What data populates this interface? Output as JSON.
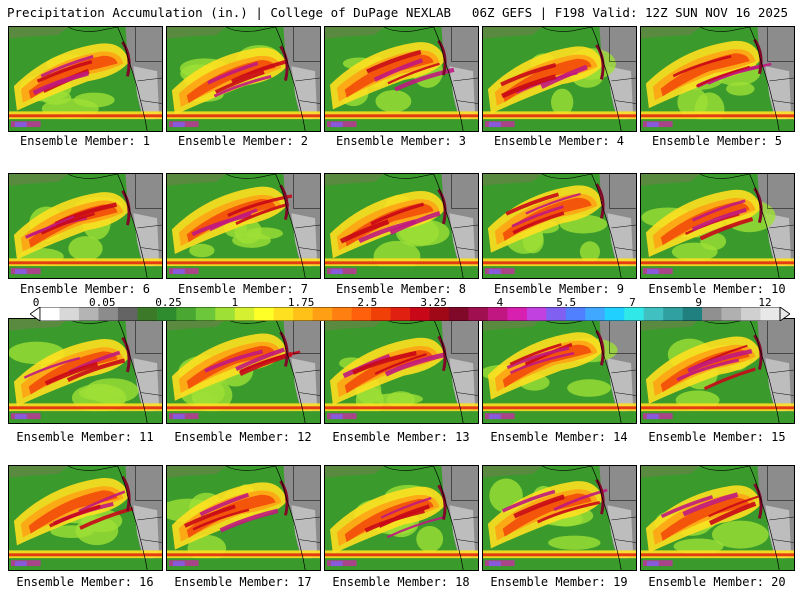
{
  "header": {
    "title": "Precipitation Accumulation (in.) | College of DuPage NEXLAB",
    "run_info": "06Z GEFS | F198 Valid: 12Z SUN NOV 16 2025"
  },
  "panel_label_prefix": "Ensemble Member: ",
  "members": [
    1,
    2,
    3,
    4,
    5,
    6,
    7,
    8,
    9,
    10,
    11,
    12,
    13,
    14,
    15,
    16,
    17,
    18,
    19,
    20
  ],
  "colorbar": {
    "tick_labels": [
      "0",
      "0.05",
      "0.25",
      "1",
      "1.75",
      "2.5",
      "3.25",
      "4",
      "5.5",
      "7",
      "9",
      "12"
    ],
    "colors": [
      "#ffffff",
      "#d8d8d8",
      "#b4b4b4",
      "#8c8c8c",
      "#646464",
      "#3c7a2a",
      "#2e8b2e",
      "#4aa832",
      "#6cc83a",
      "#9ee036",
      "#d4f030",
      "#ffff28",
      "#ffe020",
      "#ffc018",
      "#ffa014",
      "#ff8010",
      "#ff600c",
      "#f04008",
      "#e02010",
      "#c80818",
      "#a00818",
      "#800828",
      "#a01050",
      "#c01880",
      "#d820b0",
      "#c040e0",
      "#8060f0",
      "#5080ff",
      "#40a8ff",
      "#20d0ff",
      "#30e8e8",
      "#40c0c0",
      "#30a0a0",
      "#208080",
      "#909090",
      "#b0b0b0",
      "#d0d0d0",
      "#e8e8e8"
    ]
  }
}
